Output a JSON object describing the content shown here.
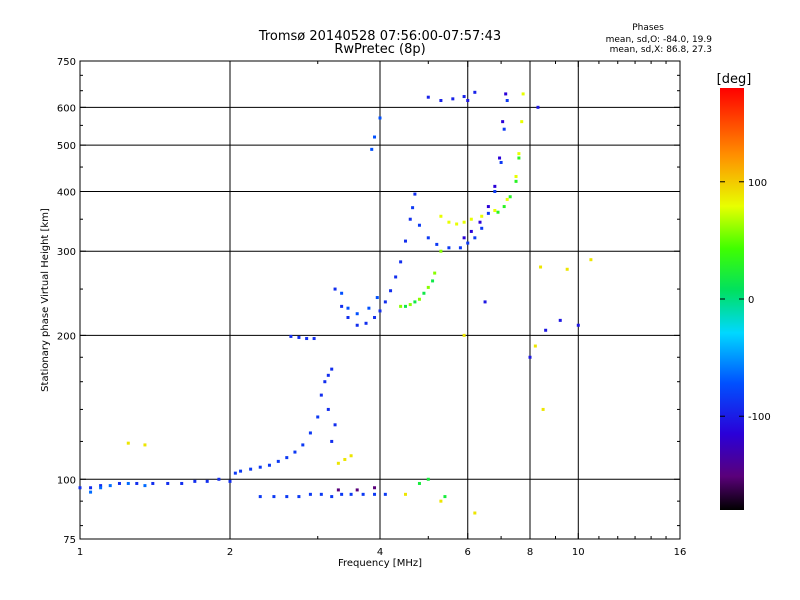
{
  "chart_data": {
    "type": "scatter",
    "title": "Tromsø 20140528 07:56:00-07:57:43",
    "subtitle": "RwPretec (8p)",
    "xlabel": "Frequency [MHz]",
    "ylabel": "Stationary phase Virtual Height [km]",
    "x_scale": "log",
    "y_scale": "log",
    "xlim": [
      1,
      16
    ],
    "ylim": [
      75,
      750
    ],
    "x_ticks": [
      1,
      2,
      4,
      6,
      8,
      10,
      16
    ],
    "x_tick_labels": [
      "1",
      "2",
      "4",
      "6",
      "8",
      "10",
      "16"
    ],
    "x_grid": [
      2,
      4,
      6,
      8,
      10
    ],
    "y_ticks": [
      75,
      100,
      200,
      300,
      400,
      500,
      600,
      750
    ],
    "y_tick_labels": [
      "75",
      "100",
      "200",
      "300",
      "400",
      "500",
      "600",
      "750"
    ],
    "y_grid": [
      100,
      200,
      300,
      400,
      500,
      600
    ],
    "grid": true,
    "stats_box": {
      "title": "Phases",
      "line1": "mean, sd,O: -84.0, 19.9",
      "line2": "mean, sd,X: 86.8, 27.3"
    },
    "colorbar": {
      "label": "[deg]",
      "range": [
        -180,
        180
      ],
      "ticks": [
        100,
        0,
        -100
      ],
      "tick_labels": [
        "100",
        "0",
        "-100"
      ]
    },
    "clusters": [
      {
        "phase": -95,
        "points": [
          [
            1.0,
            96
          ],
          [
            1.05,
            96
          ],
          [
            1.1,
            97
          ],
          [
            1.2,
            98
          ],
          [
            1.3,
            98
          ],
          [
            1.4,
            98
          ],
          [
            1.5,
            98
          ],
          [
            1.6,
            98
          ],
          [
            1.7,
            99
          ],
          [
            1.8,
            99
          ],
          [
            1.9,
            100
          ],
          [
            2.0,
            99
          ]
        ]
      },
      {
        "phase": -70,
        "points": [
          [
            1.05,
            94
          ],
          [
            1.1,
            96
          ],
          [
            1.15,
            97
          ],
          [
            1.25,
            98
          ],
          [
            1.35,
            97
          ]
        ]
      },
      {
        "phase": -90,
        "points": [
          [
            2.05,
            103
          ],
          [
            2.1,
            104
          ],
          [
            2.2,
            105
          ],
          [
            2.3,
            106
          ],
          [
            2.4,
            107
          ],
          [
            2.5,
            109
          ],
          [
            2.6,
            111
          ],
          [
            2.7,
            114
          ],
          [
            2.8,
            118
          ],
          [
            2.9,
            125
          ],
          [
            3.0,
            135
          ]
        ]
      },
      {
        "phase": -90,
        "points": [
          [
            2.3,
            92
          ],
          [
            2.45,
            92
          ],
          [
            2.6,
            92
          ],
          [
            2.75,
            92
          ],
          [
            2.9,
            93
          ],
          [
            3.05,
            93
          ],
          [
            3.2,
            92
          ],
          [
            3.35,
            93
          ],
          [
            3.5,
            93
          ],
          [
            3.7,
            93
          ],
          [
            3.9,
            93
          ],
          [
            4.1,
            93
          ]
        ]
      },
      {
        "phase": -95,
        "points": [
          [
            3.05,
            150
          ],
          [
            3.1,
            160
          ],
          [
            3.15,
            165
          ],
          [
            3.2,
            170
          ],
          [
            3.15,
            140
          ],
          [
            3.25,
            130
          ],
          [
            3.2,
            120
          ]
        ]
      },
      {
        "phase": -95,
        "points": [
          [
            2.65,
            199
          ],
          [
            2.75,
            198
          ],
          [
            2.85,
            197
          ],
          [
            2.95,
            197
          ]
        ]
      },
      {
        "phase": -95,
        "points": [
          [
            3.25,
            250
          ],
          [
            3.35,
            230
          ],
          [
            3.45,
            218
          ],
          [
            3.6,
            210
          ],
          [
            3.75,
            212
          ],
          [
            3.9,
            218
          ],
          [
            4.0,
            225
          ],
          [
            4.1,
            235
          ],
          [
            4.2,
            248
          ],
          [
            4.3,
            265
          ],
          [
            4.4,
            285
          ],
          [
            4.5,
            315
          ],
          [
            4.6,
            350
          ],
          [
            4.7,
            395
          ]
        ]
      },
      {
        "phase": -80,
        "points": [
          [
            3.35,
            245
          ],
          [
            3.45,
            228
          ],
          [
            3.6,
            222
          ],
          [
            3.8,
            228
          ],
          [
            3.95,
            240
          ]
        ]
      },
      {
        "phase": -90,
        "points": [
          [
            4.65,
            370
          ],
          [
            4.8,
            340
          ],
          [
            5.0,
            320
          ],
          [
            5.2,
            310
          ],
          [
            5.5,
            305
          ],
          [
            5.8,
            305
          ],
          [
            6.0,
            312
          ],
          [
            6.2,
            320
          ],
          [
            6.4,
            335
          ],
          [
            6.6,
            360
          ],
          [
            6.8,
            400
          ],
          [
            7.0,
            460
          ],
          [
            7.1,
            540
          ],
          [
            7.2,
            620
          ]
        ]
      },
      {
        "phase": -115,
        "points": [
          [
            5.9,
            320
          ],
          [
            6.1,
            330
          ],
          [
            6.35,
            345
          ],
          [
            6.6,
            372
          ],
          [
            6.8,
            410
          ],
          [
            6.95,
            470
          ],
          [
            7.05,
            560
          ],
          [
            7.15,
            640
          ]
        ]
      },
      {
        "phase": 60,
        "points": [
          [
            4.4,
            230
          ],
          [
            4.6,
            232
          ],
          [
            4.8,
            238
          ],
          [
            5.0,
            252
          ],
          [
            5.15,
            270
          ],
          [
            5.3,
            300
          ]
        ]
      },
      {
        "phase": 15,
        "points": [
          [
            4.5,
            230
          ],
          [
            4.7,
            235
          ],
          [
            4.9,
            245
          ],
          [
            5.1,
            260
          ]
        ]
      },
      {
        "phase": 80,
        "points": [
          [
            5.3,
            355
          ],
          [
            5.5,
            345
          ],
          [
            5.7,
            342
          ],
          [
            5.9,
            345
          ],
          [
            6.1,
            350
          ],
          [
            6.4,
            355
          ],
          [
            6.8,
            365
          ],
          [
            7.2,
            385
          ],
          [
            7.5,
            430
          ],
          [
            7.6,
            480
          ],
          [
            7.7,
            560
          ],
          [
            7.75,
            640
          ]
        ]
      },
      {
        "phase": 30,
        "points": [
          [
            6.9,
            362
          ],
          [
            7.1,
            372
          ],
          [
            7.3,
            390
          ],
          [
            7.5,
            420
          ],
          [
            7.6,
            470
          ]
        ]
      },
      {
        "phase": -100,
        "points": [
          [
            5.0,
            630
          ],
          [
            5.3,
            620
          ],
          [
            5.6,
            625
          ],
          [
            5.9,
            632
          ],
          [
            6.2,
            645
          ]
        ]
      },
      {
        "phase": -80,
        "points": [
          [
            3.85,
            490
          ],
          [
            3.9,
            520
          ],
          [
            4.0,
            570
          ]
        ]
      },
      {
        "phase": 90,
        "points": [
          [
            3.3,
            108
          ],
          [
            3.4,
            110
          ],
          [
            3.5,
            112
          ],
          [
            4.5,
            93
          ],
          [
            5.3,
            90
          ],
          [
            6.2,
            85
          ],
          [
            8.5,
            140
          ],
          [
            8.2,
            190
          ],
          [
            8.4,
            278
          ],
          [
            9.5,
            275
          ],
          [
            10.6,
            288
          ],
          [
            5.9,
            200
          ],
          [
            1.25,
            119
          ],
          [
            1.35,
            118
          ]
        ]
      },
      {
        "phase": -105,
        "points": [
          [
            9.2,
            215
          ],
          [
            10.0,
            210
          ],
          [
            8.6,
            205
          ],
          [
            8.0,
            180
          ],
          [
            6.5,
            235
          ],
          [
            6.0,
            620
          ],
          [
            8.3,
            600
          ]
        ]
      },
      {
        "phase": -150,
        "points": [
          [
            3.3,
            95
          ],
          [
            3.6,
            95
          ],
          [
            3.9,
            96
          ]
        ]
      },
      {
        "phase": 20,
        "points": [
          [
            5.0,
            100
          ],
          [
            4.8,
            98
          ],
          [
            5.4,
            92
          ]
        ]
      }
    ]
  }
}
